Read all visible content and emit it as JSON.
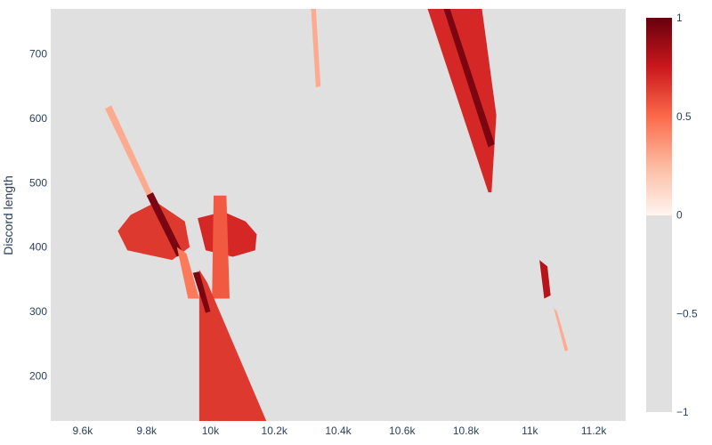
{
  "chart_data": {
    "type": "heatmap",
    "title": "",
    "xlabel": "",
    "ylabel": "Discord length",
    "xlim": [
      9500,
      11300
    ],
    "ylim": [
      130,
      770
    ],
    "x_ticks": [
      {
        "value": 9600,
        "label": "9.6k"
      },
      {
        "value": 9800,
        "label": "9.8k"
      },
      {
        "value": 10000,
        "label": "10k"
      },
      {
        "value": 10200,
        "label": "10.2k"
      },
      {
        "value": 10400,
        "label": "10.4k"
      },
      {
        "value": 10600,
        "label": "10.6k"
      },
      {
        "value": 10800,
        "label": "10.8k"
      },
      {
        "value": 11000,
        "label": "11k"
      },
      {
        "value": 11200,
        "label": "11.2k"
      }
    ],
    "y_ticks": [
      {
        "value": 200,
        "label": "200"
      },
      {
        "value": 300,
        "label": "300"
      },
      {
        "value": 400,
        "label": "400"
      },
      {
        "value": 500,
        "label": "500"
      },
      {
        "value": 600,
        "label": "600"
      },
      {
        "value": 700,
        "label": "700"
      }
    ],
    "background_color": "#e0e0e0",
    "colorscale": {
      "min": -1,
      "max": 1,
      "ticks": [
        {
          "value": 1,
          "label": "1"
        },
        {
          "value": 0.5,
          "label": "0.5"
        },
        {
          "value": 0,
          "label": "0"
        },
        {
          "value": -0.5,
          "label": "−0.5"
        },
        {
          "value": -1,
          "label": "−1"
        }
      ],
      "negative_color": "#e0e0e0",
      "stops": [
        "#fff5f0",
        "#fcbba1",
        "#fb6a4a",
        "#cb181d",
        "#67000d"
      ]
    },
    "regions": [
      {
        "name": "left-diagonal-band",
        "intensity": 0.3,
        "points": [
          [
            9670,
            615
          ],
          [
            9690,
            620
          ],
          [
            9830,
            470
          ],
          [
            9820,
            460
          ]
        ]
      },
      {
        "name": "cross-blob-1",
        "intensity": 0.65,
        "points": [
          [
            9750,
            450
          ],
          [
            9830,
            470
          ],
          [
            9920,
            440
          ],
          [
            9935,
            400
          ],
          [
            9880,
            380
          ],
          [
            9740,
            395
          ],
          [
            9710,
            425
          ]
        ]
      },
      {
        "name": "cross-blob-1-dark",
        "intensity": 0.95,
        "points": [
          [
            9800,
            480
          ],
          [
            9820,
            485
          ],
          [
            9915,
            390
          ],
          [
            9895,
            385
          ]
        ]
      },
      {
        "name": "cross-blob-2",
        "intensity": 0.7,
        "points": [
          [
            9960,
            445
          ],
          [
            10040,
            455
          ],
          [
            10110,
            440
          ],
          [
            10145,
            420
          ],
          [
            10140,
            395
          ],
          [
            10070,
            385
          ],
          [
            9985,
            395
          ]
        ]
      },
      {
        "name": "cross-blob-2-vertical",
        "intensity": 0.55,
        "points": [
          [
            10010,
            480
          ],
          [
            10050,
            480
          ],
          [
            10060,
            320
          ],
          [
            10005,
            320
          ]
        ]
      },
      {
        "name": "mid-diagonal",
        "intensity": 0.45,
        "points": [
          [
            9895,
            400
          ],
          [
            9925,
            390
          ],
          [
            9965,
            320
          ],
          [
            9930,
            320
          ]
        ]
      },
      {
        "name": "lower-big-triangle",
        "intensity": 0.65,
        "points": [
          [
            9965,
            365
          ],
          [
            9990,
            345
          ],
          [
            10175,
            130
          ],
          [
            9965,
            130
          ]
        ]
      },
      {
        "name": "lower-dark-diagonal",
        "intensity": 0.95,
        "points": [
          [
            9945,
            360
          ],
          [
            9965,
            362
          ],
          [
            10000,
            300
          ],
          [
            9985,
            298
          ]
        ]
      },
      {
        "name": "top-small-spike",
        "intensity": 0.3,
        "points": [
          [
            10315,
            770
          ],
          [
            10330,
            770
          ],
          [
            10345,
            650
          ],
          [
            10330,
            648
          ]
        ]
      },
      {
        "name": "upper-right-wedge",
        "intensity": 0.7,
        "points": [
          [
            10680,
            770
          ],
          [
            10850,
            770
          ],
          [
            10895,
            605
          ],
          [
            10880,
            485
          ],
          [
            10870,
            485
          ]
        ]
      },
      {
        "name": "upper-right-dark",
        "intensity": 0.95,
        "points": [
          [
            10730,
            770
          ],
          [
            10750,
            770
          ],
          [
            10890,
            560
          ],
          [
            10870,
            555
          ]
        ]
      },
      {
        "name": "right-small-streak",
        "intensity": 0.8,
        "points": [
          [
            11030,
            380
          ],
          [
            11055,
            370
          ],
          [
            11065,
            325
          ],
          [
            11045,
            320
          ]
        ]
      },
      {
        "name": "right-faint-streak",
        "intensity": 0.3,
        "points": [
          [
            11075,
            305
          ],
          [
            11085,
            300
          ],
          [
            11120,
            240
          ],
          [
            11110,
            238
          ]
        ]
      }
    ]
  }
}
